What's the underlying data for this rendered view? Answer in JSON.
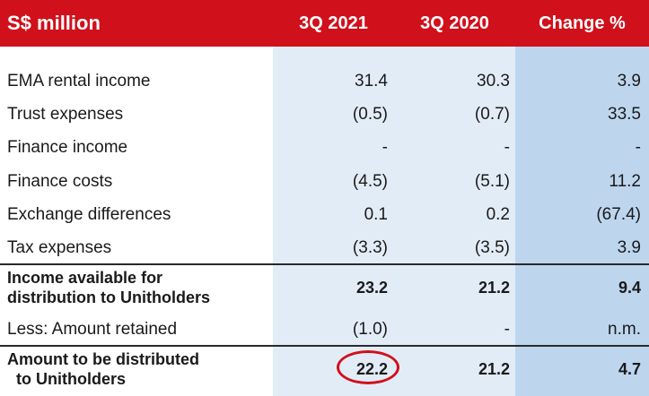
{
  "header": {
    "title": "S$ million",
    "col_2021": "3Q 2021",
    "col_2020": "3Q 2020",
    "col_change": "Change %"
  },
  "rows": [
    {
      "label": "EMA rental income",
      "v2021": "31.4",
      "v2020": "30.3",
      "change": "3.9"
    },
    {
      "label": "Trust expenses",
      "v2021": "(0.5)",
      "v2020": "(0.7)",
      "change": "33.5"
    },
    {
      "label": "Finance income",
      "v2021": "-",
      "v2020": "-",
      "change": "-"
    },
    {
      "label": "Finance costs",
      "v2021": "(4.5)",
      "v2020": "(5.1)",
      "change": "11.2"
    },
    {
      "label": "Exchange differences",
      "v2021": "0.1",
      "v2020": "0.2",
      "change": "(67.4)"
    },
    {
      "label": "Tax expenses",
      "v2021": "(3.3)",
      "v2020": "(3.5)",
      "change": "3.9"
    }
  ],
  "income_available": {
    "label_line1": "Income available for",
    "label_line2": "distribution to Unitholders",
    "v2021": "23.2",
    "v2020": "21.2",
    "change": "9.4"
  },
  "less_retained": {
    "label": "Less: Amount retained",
    "v2021": "(1.0)",
    "v2020": "-",
    "change": "n.m."
  },
  "to_be_distributed": {
    "label_line1": "Amount to be distributed",
    "label_line2": "to Unitholders",
    "v2021": "22.2",
    "v2020": "21.2",
    "change": "4.7"
  },
  "colors": {
    "header_red": "#d0101b",
    "col_light": "#e2ecf7",
    "col_change": "#bdd6ee"
  }
}
